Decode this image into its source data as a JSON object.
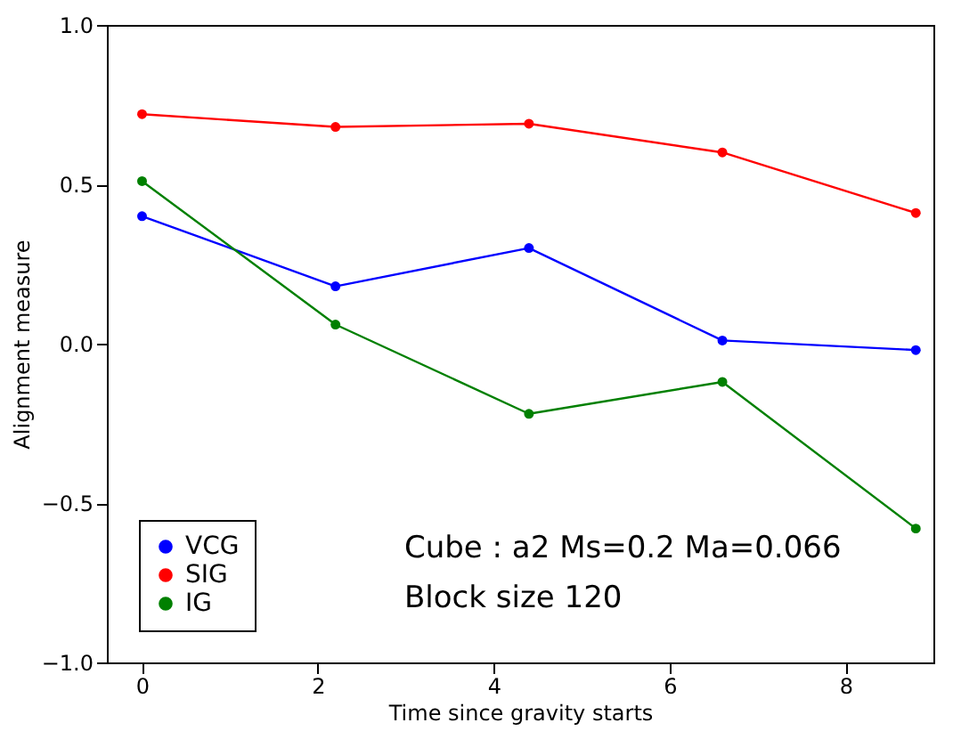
{
  "chart_data": {
    "type": "line",
    "xlabel": "Time since gravity starts",
    "ylabel": "Alignment measure",
    "x": [
      0,
      2.2,
      4.4,
      6.6,
      8.8
    ],
    "series": [
      {
        "name": "VCG",
        "color": "#0000ff",
        "values": [
          0.4,
          0.18,
          0.3,
          0.01,
          -0.02
        ]
      },
      {
        "name": "SIG",
        "color": "#ff0000",
        "values": [
          0.72,
          0.68,
          0.69,
          0.6,
          0.41
        ]
      },
      {
        "name": "IG",
        "color": "#008000",
        "values": [
          0.51,
          0.06,
          -0.22,
          -0.12,
          -0.58
        ]
      }
    ],
    "xlim": [
      -0.4,
      9.0
    ],
    "xticks": [
      0,
      2,
      4,
      6,
      8
    ],
    "ylim": [
      -1.0,
      1.0
    ],
    "yticks": [
      {
        "value": -1.0,
        "label": "−1.0"
      },
      {
        "value": -0.5,
        "label": "−0.5"
      },
      {
        "value": 0.0,
        "label": "0.0"
      },
      {
        "value": 0.5,
        "label": "0.5"
      },
      {
        "value": 1.0,
        "label": "1.0"
      }
    ],
    "annotations": [
      "Cube : a2 Ms=0.2 Ma=0.066",
      "Block size 120"
    ],
    "grid": false,
    "legend": "bottom left",
    "marker": "circle",
    "line_style": "solid"
  }
}
